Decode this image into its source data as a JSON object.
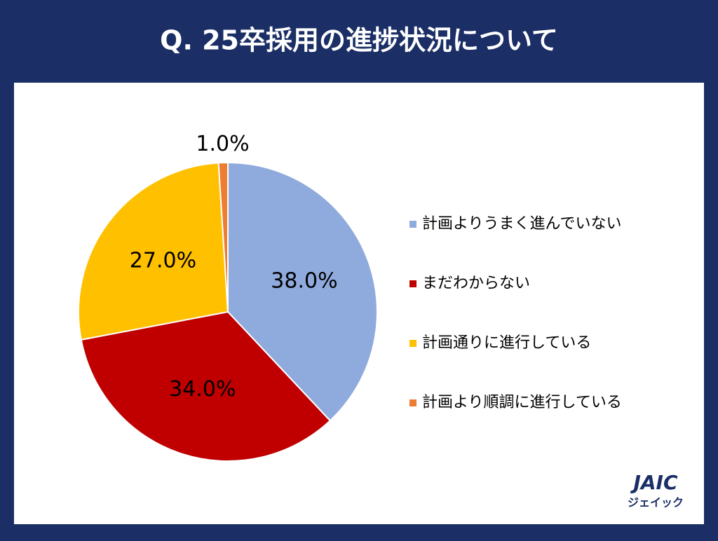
{
  "chart_data": {
    "type": "pie",
    "title": "Q. 25卒採用の進捗状況について",
    "categories": [
      "計画よりうまく進んでいない",
      "まだわからない",
      "計画通りに進行している",
      "計画より順調に進行している"
    ],
    "values": [
      38,
      34,
      27,
      1
    ],
    "value_labels": [
      "38.0%",
      "34.0%",
      "27.0%",
      "1.0%"
    ],
    "colors": [
      "#8faadc",
      "#c00000",
      "#ffc000",
      "#ed7d31"
    ],
    "legend": "right"
  },
  "logo": {
    "name": "JAIC",
    "kana": "ジェイック"
  }
}
